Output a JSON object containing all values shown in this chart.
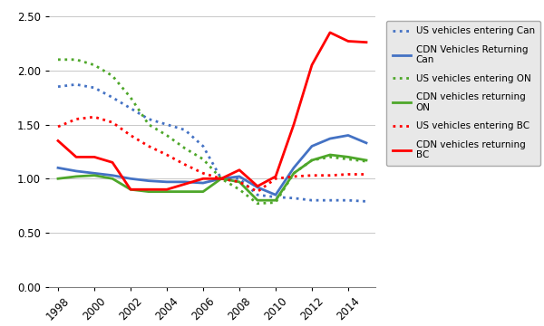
{
  "years": [
    1998,
    1999,
    2000,
    2001,
    2002,
    2003,
    2004,
    2005,
    2006,
    2007,
    2008,
    2009,
    2010,
    2011,
    2012,
    2013,
    2014,
    2015
  ],
  "us_entering_can": [
    1.85,
    1.87,
    1.84,
    1.75,
    1.65,
    1.55,
    1.5,
    1.45,
    1.3,
    1.0,
    1.0,
    0.85,
    0.83,
    0.82,
    0.8,
    0.8,
    0.8,
    0.79
  ],
  "cdn_returning_can": [
    1.1,
    1.07,
    1.05,
    1.03,
    1.0,
    0.98,
    0.97,
    0.97,
    0.96,
    1.0,
    1.02,
    0.92,
    0.85,
    1.1,
    1.3,
    1.37,
    1.4,
    1.33
  ],
  "us_entering_on": [
    2.1,
    2.1,
    2.05,
    1.95,
    1.75,
    1.5,
    1.4,
    1.28,
    1.18,
    1.0,
    0.9,
    0.77,
    0.78,
    1.05,
    1.17,
    1.2,
    1.18,
    1.16
  ],
  "cdn_returning_on": [
    1.0,
    1.02,
    1.03,
    1.0,
    0.9,
    0.88,
    0.88,
    0.88,
    0.88,
    1.0,
    0.97,
    0.8,
    0.8,
    1.05,
    1.17,
    1.22,
    1.2,
    1.17
  ],
  "us_entering_bc": [
    1.48,
    1.55,
    1.57,
    1.52,
    1.4,
    1.3,
    1.22,
    1.13,
    1.05,
    1.0,
    0.97,
    0.88,
    1.0,
    1.02,
    1.03,
    1.03,
    1.04,
    1.04
  ],
  "cdn_returning_bc": [
    1.35,
    1.2,
    1.2,
    1.15,
    0.9,
    0.9,
    0.9,
    0.95,
    1.0,
    1.0,
    1.08,
    0.93,
    1.02,
    1.5,
    2.05,
    2.35,
    2.27,
    2.26
  ],
  "color_blue": "#4472C4",
  "color_green": "#4EA72A",
  "color_red": "#FF0000",
  "bg_color": "#E8E8E8",
  "ylim": [
    0.0,
    2.5
  ],
  "yticks": [
    0.0,
    0.5,
    1.0,
    1.5,
    2.0,
    2.5
  ],
  "xticks": [
    1998,
    2000,
    2002,
    2004,
    2006,
    2008,
    2010,
    2012,
    2014
  ],
  "legend_labels": [
    "US vehicles entering Can",
    "CDN Vehicles Returning\nCan",
    "US vehicles entering ON",
    "CDN vehicles returning\nON",
    "US vehicles entering BC",
    "CDN vehicles returning\nBC"
  ],
  "figsize": [
    6.0,
    3.6
  ],
  "dpi": 100
}
